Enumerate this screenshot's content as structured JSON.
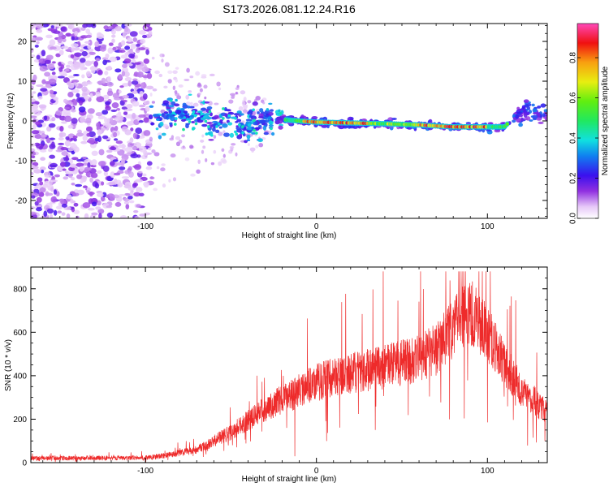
{
  "title": "S173.2026.081.12.24.R16",
  "colors": {
    "snr_line": "#ee2b2b",
    "axis": "#000000"
  },
  "colorbar": {
    "label": "Normalized spectral amplitude",
    "ticks": [
      "0.0",
      "0.2",
      "0.4",
      "0.6",
      "0.8"
    ],
    "tick_values": [
      0.0,
      0.2,
      0.4,
      0.6,
      0.8
    ],
    "range": [
      0.0,
      0.97
    ]
  },
  "chart_data": [
    {
      "type": "heatmap",
      "name": "spectrogram",
      "xlabel": "Height of straight line (km)",
      "ylabel": "Frequency (Hz)",
      "xlim": [
        -167,
        135
      ],
      "ylim": [
        -24.5,
        24.5
      ],
      "x_ticks": [
        "-100",
        "0",
        "100"
      ],
      "x_tick_values": [
        -100,
        0,
        100
      ],
      "y_ticks": [
        "20",
        "10",
        "0",
        "-10",
        "-20"
      ],
      "y_tick_values": [
        20,
        10,
        0,
        -10,
        -20
      ],
      "signal_ridge": {
        "x": [
          -95,
          -80,
          -60,
          -40,
          -25,
          -10,
          0,
          20,
          40,
          60,
          80,
          100,
          110,
          118,
          125,
          135
        ],
        "freq": [
          1,
          2,
          0,
          -1,
          0.5,
          0,
          -0.3,
          -0.5,
          -0.7,
          -1,
          -1.5,
          -1.5,
          -1.5,
          2,
          2.5,
          1
        ]
      }
    },
    {
      "type": "line",
      "name": "snr",
      "xlabel": "Height of straight line (km)",
      "ylabel": "SNR (10 * v/v)",
      "xlim": [
        -167,
        135
      ],
      "ylim": [
        0,
        900
      ],
      "x_ticks": [
        "-100",
        "0",
        "100"
      ],
      "x_tick_values": [
        -100,
        0,
        100
      ],
      "y_ticks": [
        "0",
        "200",
        "400",
        "600",
        "800"
      ],
      "y_tick_values": [
        0,
        200,
        400,
        600,
        800
      ],
      "envelope": {
        "x": [
          -167,
          -100,
          -90,
          -70,
          -50,
          -30,
          -10,
          0,
          20,
          40,
          60,
          70,
          80,
          85,
          90,
          100,
          110,
          120,
          135
        ],
        "y": [
          20,
          22,
          30,
          60,
          140,
          250,
          330,
          370,
          410,
          440,
          480,
          520,
          610,
          680,
          690,
          600,
          450,
          330,
          230
        ]
      }
    }
  ]
}
